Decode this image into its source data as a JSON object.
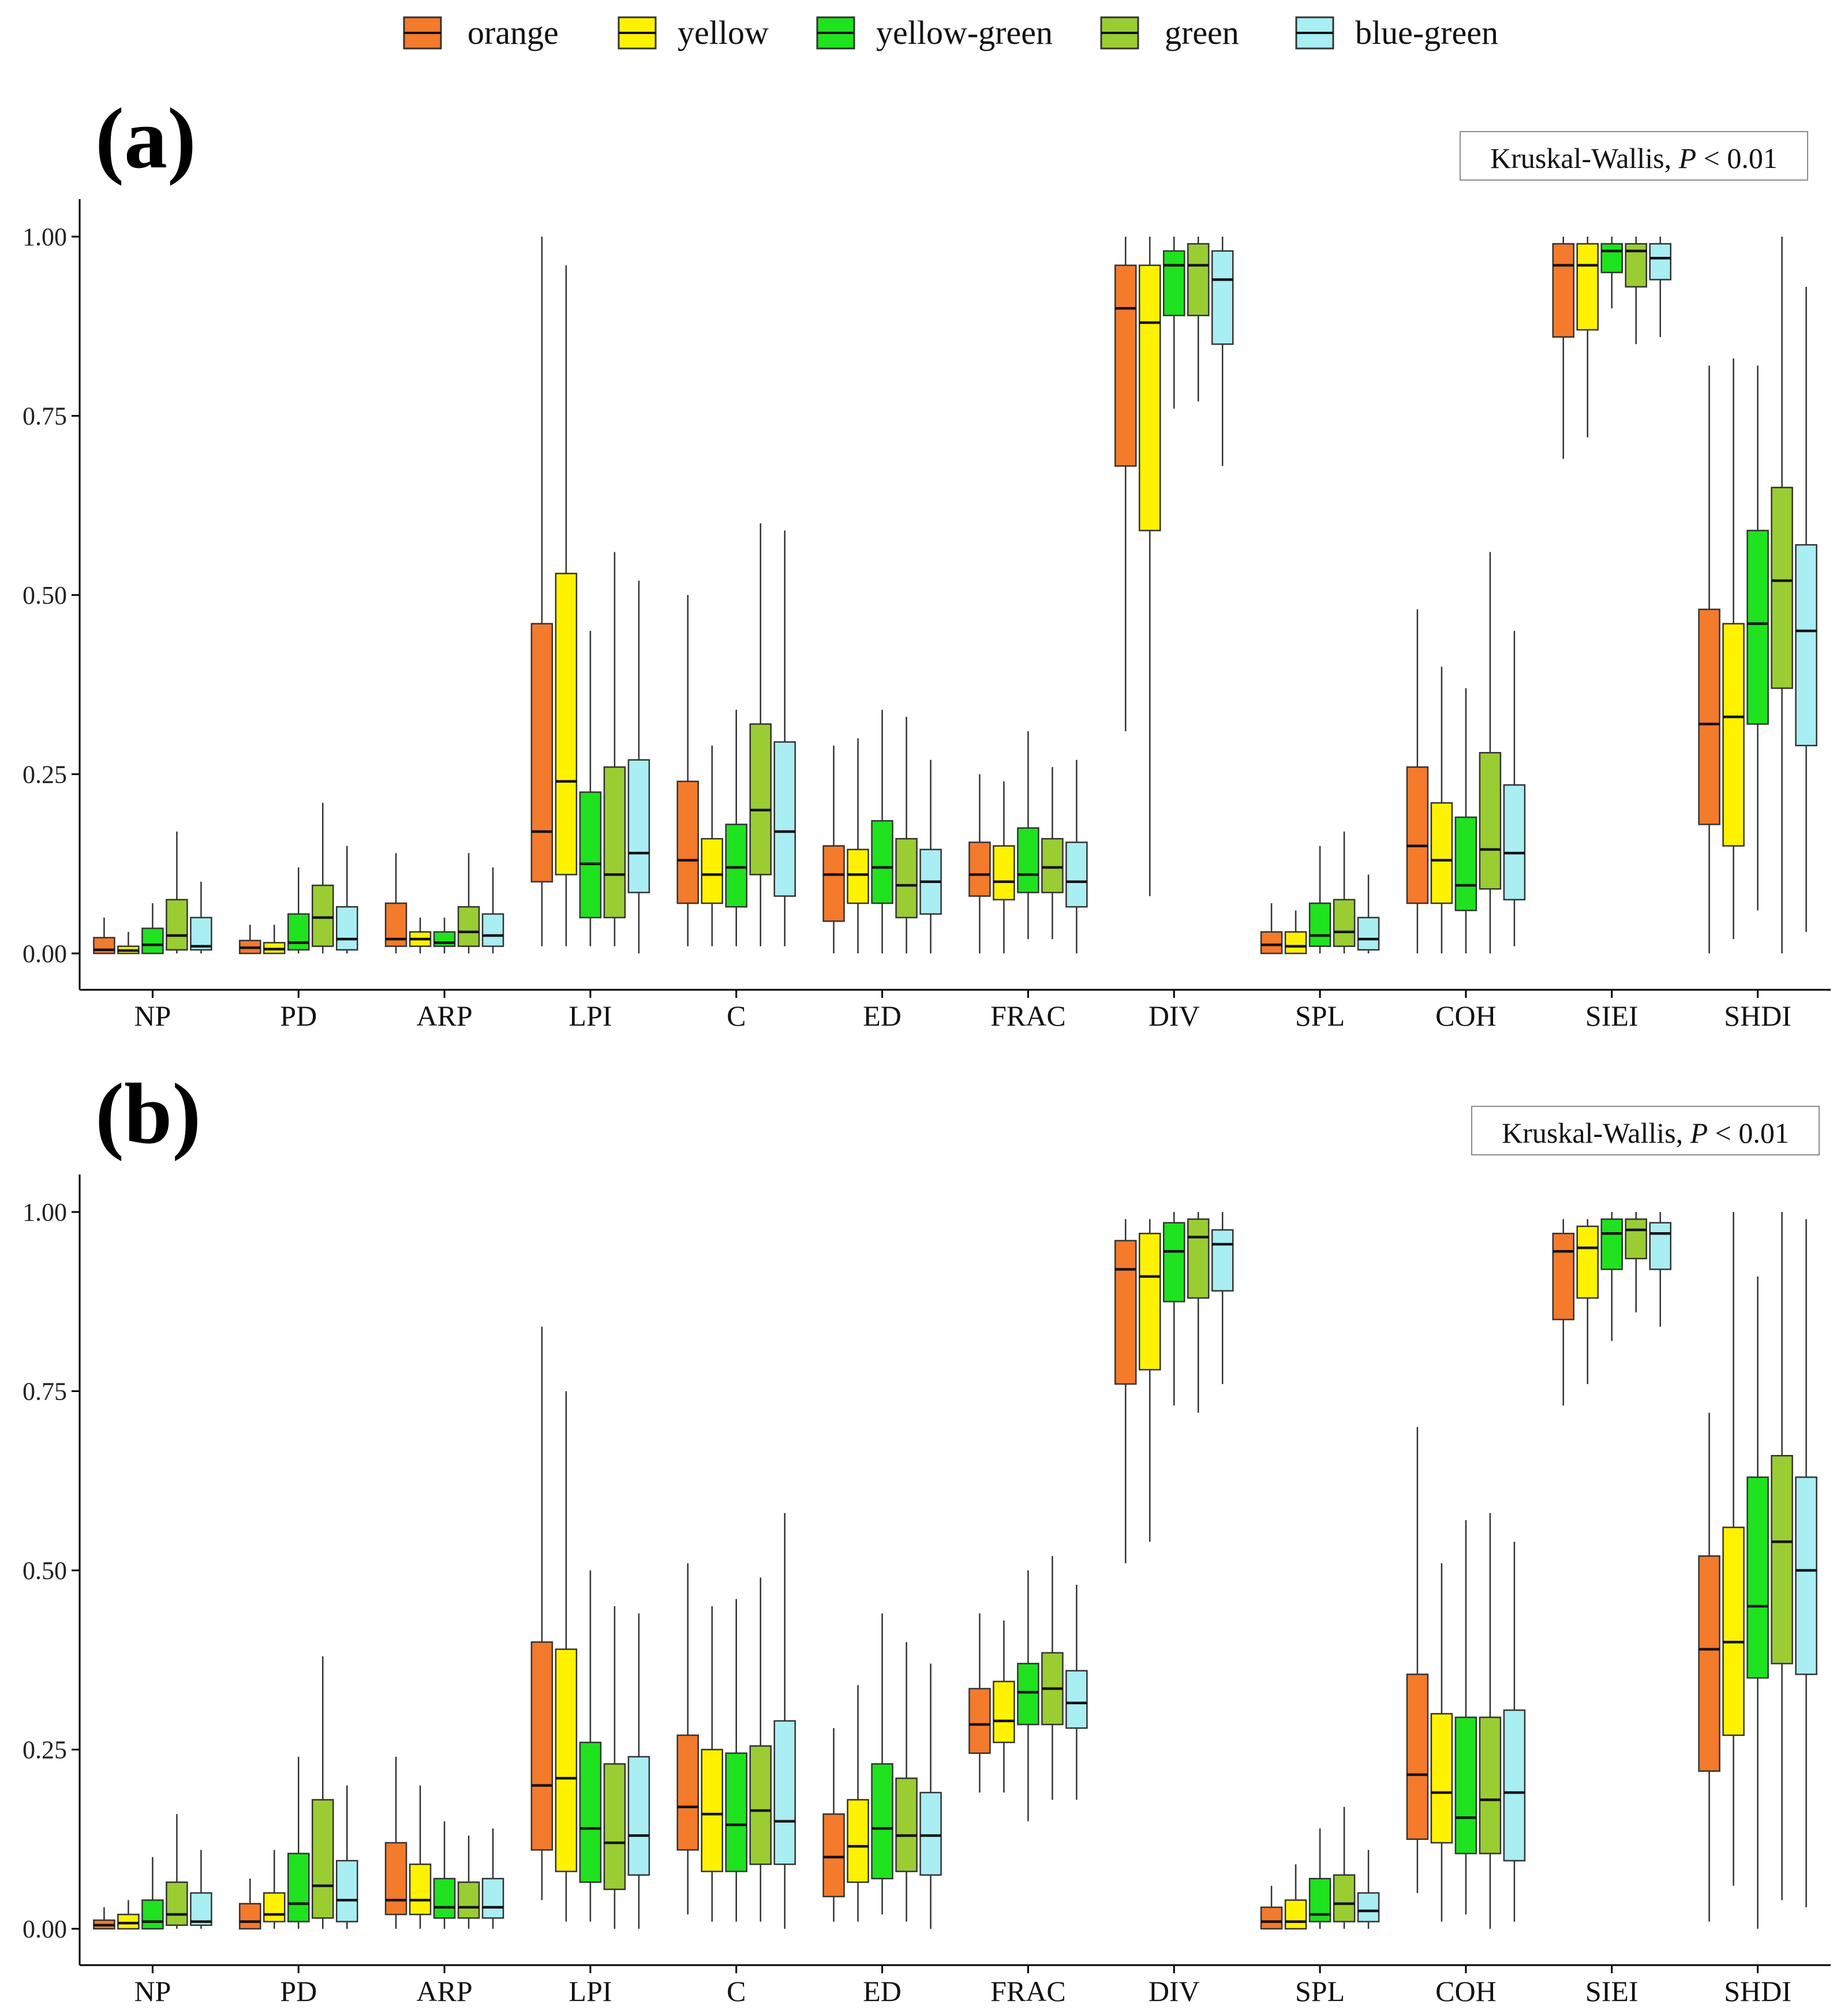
{
  "legend": {
    "title": "",
    "items": [
      {
        "label": "orange",
        "color": "#F47A2C"
      },
      {
        "label": "yellow",
        "color": "#FFF200"
      },
      {
        "label": "yellow-green",
        "color": "#1EE31E"
      },
      {
        "label": "green",
        "color": "#9ACD32"
      },
      {
        "label": "blue-green",
        "color": "#A8EEF3"
      }
    ]
  },
  "chart_data": [
    {
      "type": "boxplot",
      "panel_label": "(a)",
      "annotation": {
        "test": "Kruskal-Wallis,",
        "p_symbol": "P",
        "p_text": "< 0.01"
      },
      "categories": [
        "NP",
        "PD",
        "ARP",
        "LPI",
        "C",
        "ED",
        "FRAC",
        "DIV",
        "SPL",
        "COH",
        "SIEI",
        "SHDI"
      ],
      "ylim": [
        0,
        1
      ],
      "yticks": [
        "0.00",
        "0.25",
        "0.50",
        "0.75",
        "1.00"
      ],
      "series": [
        {
          "name": "orange",
          "boxes": [
            [
              0.0,
              0.0,
              0.005,
              0.022,
              0.05
            ],
            [
              0.0,
              0.0,
              0.008,
              0.018,
              0.04
            ],
            [
              0.0,
              0.01,
              0.02,
              0.07,
              0.14
            ],
            [
              0.01,
              0.1,
              0.17,
              0.46,
              1.0
            ],
            [
              0.01,
              0.07,
              0.13,
              0.24,
              0.5
            ],
            [
              0.0,
              0.045,
              0.11,
              0.15,
              0.29
            ],
            [
              0.0,
              0.08,
              0.11,
              0.155,
              0.25
            ],
            [
              0.31,
              0.68,
              0.9,
              0.96,
              1.0
            ],
            [
              0.0,
              0.0,
              0.012,
              0.03,
              0.07
            ],
            [
              0.0,
              0.07,
              0.15,
              0.26,
              0.48
            ],
            [
              0.69,
              0.86,
              0.96,
              0.99,
              1.0
            ],
            [
              0.0,
              0.18,
              0.32,
              0.48,
              0.82
            ]
          ]
        },
        {
          "name": "yellow",
          "boxes": [
            [
              0.0,
              0.0,
              0.004,
              0.01,
              0.03
            ],
            [
              0.0,
              0.0,
              0.006,
              0.015,
              0.04
            ],
            [
              0.0,
              0.01,
              0.02,
              0.03,
              0.05
            ],
            [
              0.01,
              0.11,
              0.24,
              0.53,
              0.96
            ],
            [
              0.01,
              0.07,
              0.11,
              0.16,
              0.29
            ],
            [
              0.0,
              0.07,
              0.11,
              0.145,
              0.3
            ],
            [
              0.0,
              0.075,
              0.1,
              0.15,
              0.24
            ],
            [
              0.08,
              0.59,
              0.88,
              0.96,
              1.0
            ],
            [
              0.0,
              0.0,
              0.01,
              0.03,
              0.06
            ],
            [
              0.0,
              0.07,
              0.13,
              0.21,
              0.4
            ],
            [
              0.72,
              0.87,
              0.96,
              0.99,
              1.0
            ],
            [
              0.02,
              0.15,
              0.33,
              0.46,
              0.83
            ]
          ]
        },
        {
          "name": "yellow-green",
          "boxes": [
            [
              0.0,
              0.0,
              0.012,
              0.035,
              0.07
            ],
            [
              0.0,
              0.005,
              0.015,
              0.055,
              0.12
            ],
            [
              0.0,
              0.01,
              0.015,
              0.03,
              0.05
            ],
            [
              0.01,
              0.05,
              0.125,
              0.225,
              0.45
            ],
            [
              0.01,
              0.065,
              0.12,
              0.18,
              0.34
            ],
            [
              0.0,
              0.07,
              0.12,
              0.185,
              0.34
            ],
            [
              0.02,
              0.085,
              0.11,
              0.175,
              0.31
            ],
            [
              0.76,
              0.89,
              0.96,
              0.98,
              1.0
            ],
            [
              0.0,
              0.01,
              0.025,
              0.07,
              0.15
            ],
            [
              0.0,
              0.06,
              0.095,
              0.19,
              0.37
            ],
            [
              0.9,
              0.95,
              0.98,
              0.99,
              1.0
            ],
            [
              0.06,
              0.32,
              0.46,
              0.59,
              0.82
            ]
          ]
        },
        {
          "name": "green",
          "boxes": [
            [
              0.0,
              0.005,
              0.025,
              0.075,
              0.17
            ],
            [
              0.0,
              0.01,
              0.05,
              0.095,
              0.21
            ],
            [
              0.0,
              0.01,
              0.03,
              0.065,
              0.14
            ],
            [
              0.01,
              0.05,
              0.11,
              0.26,
              0.56
            ],
            [
              0.01,
              0.11,
              0.2,
              0.32,
              0.6
            ],
            [
              0.0,
              0.05,
              0.095,
              0.16,
              0.33
            ],
            [
              0.02,
              0.085,
              0.12,
              0.16,
              0.26
            ],
            [
              0.77,
              0.89,
              0.96,
              0.99,
              1.0
            ],
            [
              0.0,
              0.01,
              0.03,
              0.075,
              0.17
            ],
            [
              0.0,
              0.09,
              0.145,
              0.28,
              0.56
            ],
            [
              0.85,
              0.93,
              0.98,
              0.99,
              1.0
            ],
            [
              0.0,
              0.37,
              0.52,
              0.65,
              1.0
            ]
          ]
        },
        {
          "name": "blue-green",
          "boxes": [
            [
              0.0,
              0.005,
              0.01,
              0.05,
              0.1
            ],
            [
              0.0,
              0.005,
              0.02,
              0.065,
              0.15
            ],
            [
              0.0,
              0.01,
              0.025,
              0.055,
              0.12
            ],
            [
              0.0,
              0.085,
              0.14,
              0.27,
              0.52
            ],
            [
              0.01,
              0.08,
              0.17,
              0.295,
              0.59
            ],
            [
              0.0,
              0.055,
              0.1,
              0.145,
              0.27
            ],
            [
              0.0,
              0.065,
              0.1,
              0.155,
              0.27
            ],
            [
              0.68,
              0.85,
              0.94,
              0.98,
              1.0
            ],
            [
              0.0,
              0.005,
              0.02,
              0.05,
              0.11
            ],
            [
              0.01,
              0.075,
              0.14,
              0.235,
              0.45
            ],
            [
              0.86,
              0.94,
              0.97,
              0.99,
              1.0
            ],
            [
              0.03,
              0.29,
              0.45,
              0.57,
              0.93
            ]
          ]
        }
      ]
    },
    {
      "type": "boxplot",
      "panel_label": "(b)",
      "annotation": {
        "test": "Kruskal-Wallis,",
        "p_symbol": "P",
        "p_text": "< 0.01"
      },
      "categories": [
        "NP",
        "PD",
        "ARP",
        "LPI",
        "C",
        "ED",
        "FRAC",
        "DIV",
        "SPL",
        "COH",
        "SIEI",
        "SHDI"
      ],
      "ylim": [
        0,
        1
      ],
      "yticks": [
        "0.00",
        "0.25",
        "0.50",
        "0.75",
        "1.00"
      ],
      "series": [
        {
          "name": "orange",
          "boxes": [
            [
              0.0,
              0.0,
              0.005,
              0.012,
              0.03
            ],
            [
              0.0,
              0.0,
              0.01,
              0.035,
              0.07
            ],
            [
              0.0,
              0.02,
              0.04,
              0.12,
              0.24
            ],
            [
              0.04,
              0.11,
              0.2,
              0.4,
              0.84
            ],
            [
              0.02,
              0.11,
              0.17,
              0.27,
              0.51
            ],
            [
              0.01,
              0.045,
              0.1,
              0.16,
              0.28
            ],
            [
              0.19,
              0.245,
              0.285,
              0.335,
              0.44
            ],
            [
              0.51,
              0.76,
              0.92,
              0.96,
              0.99
            ],
            [
              0.0,
              0.0,
              0.01,
              0.03,
              0.06
            ],
            [
              0.05,
              0.125,
              0.215,
              0.355,
              0.7
            ],
            [
              0.73,
              0.85,
              0.945,
              0.97,
              0.99
            ],
            [
              0.01,
              0.22,
              0.39,
              0.52,
              0.72
            ]
          ]
        },
        {
          "name": "yellow",
          "boxes": [
            [
              0.0,
              0.0,
              0.008,
              0.02,
              0.04
            ],
            [
              0.0,
              0.01,
              0.02,
              0.05,
              0.11
            ],
            [
              0.0,
              0.02,
              0.04,
              0.09,
              0.2
            ],
            [
              0.01,
              0.08,
              0.21,
              0.39,
              0.75
            ],
            [
              0.01,
              0.08,
              0.16,
              0.25,
              0.45
            ],
            [
              0.01,
              0.065,
              0.115,
              0.18,
              0.34
            ],
            [
              0.19,
              0.26,
              0.29,
              0.345,
              0.43
            ],
            [
              0.54,
              0.78,
              0.91,
              0.97,
              0.99
            ],
            [
              0.0,
              0.0,
              0.01,
              0.04,
              0.09
            ],
            [
              0.01,
              0.12,
              0.19,
              0.3,
              0.51
            ],
            [
              0.76,
              0.88,
              0.95,
              0.98,
              0.99
            ],
            [
              0.06,
              0.27,
              0.4,
              0.56,
              1.0
            ]
          ]
        },
        {
          "name": "yellow-green",
          "boxes": [
            [
              0.0,
              0.0,
              0.01,
              0.04,
              0.1
            ],
            [
              0.0,
              0.01,
              0.035,
              0.105,
              0.24
            ],
            [
              0.0,
              0.015,
              0.03,
              0.07,
              0.15
            ],
            [
              0.01,
              0.065,
              0.14,
              0.26,
              0.5
            ],
            [
              0.01,
              0.08,
              0.145,
              0.245,
              0.46
            ],
            [
              0.02,
              0.07,
              0.14,
              0.23,
              0.44
            ],
            [
              0.15,
              0.285,
              0.33,
              0.37,
              0.5
            ],
            [
              0.73,
              0.875,
              0.945,
              0.985,
              1.0
            ],
            [
              0.0,
              0.01,
              0.02,
              0.07,
              0.14
            ],
            [
              0.02,
              0.105,
              0.155,
              0.295,
              0.57
            ],
            [
              0.82,
              0.92,
              0.97,
              0.99,
              1.0
            ],
            [
              0.0,
              0.35,
              0.45,
              0.63,
              0.91
            ]
          ]
        },
        {
          "name": "green",
          "boxes": [
            [
              0.0,
              0.005,
              0.02,
              0.065,
              0.16
            ],
            [
              0.0,
              0.015,
              0.06,
              0.18,
              0.38
            ],
            [
              0.0,
              0.015,
              0.03,
              0.065,
              0.13
            ],
            [
              0.0,
              0.055,
              0.12,
              0.23,
              0.45
            ],
            [
              0.01,
              0.09,
              0.165,
              0.255,
              0.49
            ],
            [
              0.01,
              0.08,
              0.13,
              0.21,
              0.4
            ],
            [
              0.18,
              0.285,
              0.335,
              0.385,
              0.52
            ],
            [
              0.72,
              0.88,
              0.965,
              0.99,
              1.0
            ],
            [
              0.0,
              0.01,
              0.035,
              0.075,
              0.17
            ],
            [
              0.0,
              0.105,
              0.18,
              0.295,
              0.58
            ],
            [
              0.86,
              0.935,
              0.975,
              0.99,
              1.0
            ],
            [
              0.04,
              0.37,
              0.54,
              0.66,
              1.0
            ]
          ]
        },
        {
          "name": "blue-green",
          "boxes": [
            [
              0.0,
              0.005,
              0.01,
              0.05,
              0.11
            ],
            [
              0.0,
              0.01,
              0.04,
              0.095,
              0.2
            ],
            [
              0.0,
              0.015,
              0.03,
              0.07,
              0.14
            ],
            [
              0.0,
              0.075,
              0.13,
              0.24,
              0.44
            ],
            [
              0.0,
              0.09,
              0.15,
              0.29,
              0.58
            ],
            [
              0.0,
              0.075,
              0.13,
              0.19,
              0.37
            ],
            [
              0.18,
              0.28,
              0.315,
              0.36,
              0.48
            ],
            [
              0.76,
              0.89,
              0.955,
              0.975,
              1.0
            ],
            [
              0.0,
              0.01,
              0.025,
              0.05,
              0.11
            ],
            [
              0.01,
              0.095,
              0.19,
              0.305,
              0.54
            ],
            [
              0.84,
              0.92,
              0.97,
              0.985,
              1.0
            ],
            [
              0.03,
              0.355,
              0.5,
              0.63,
              0.99
            ]
          ]
        }
      ]
    }
  ]
}
